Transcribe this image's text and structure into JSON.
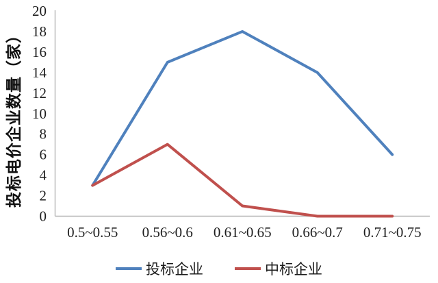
{
  "chart_data": {
    "type": "line",
    "title": "",
    "xlabel": "",
    "ylabel": "投标电价企业数量（家）",
    "categories": [
      "0.5~0.55",
      "0.56~0.6",
      "0.61~0.65",
      "0.66~0.7",
      "0.71~0.75"
    ],
    "series": [
      {
        "name": "投标企业",
        "color": "#4F81BD",
        "values": [
          3,
          15,
          18,
          14,
          6
        ]
      },
      {
        "name": "中标企业",
        "color": "#C0504D",
        "values": [
          3,
          7,
          1,
          0,
          0
        ]
      }
    ],
    "ylim": [
      0,
      20
    ],
    "ytick_step": 2,
    "grid": false,
    "legend_position": "bottom",
    "axis_color": "#b5b5b5",
    "text_color": "#1d1d1d",
    "background_color": "#ffffff"
  }
}
